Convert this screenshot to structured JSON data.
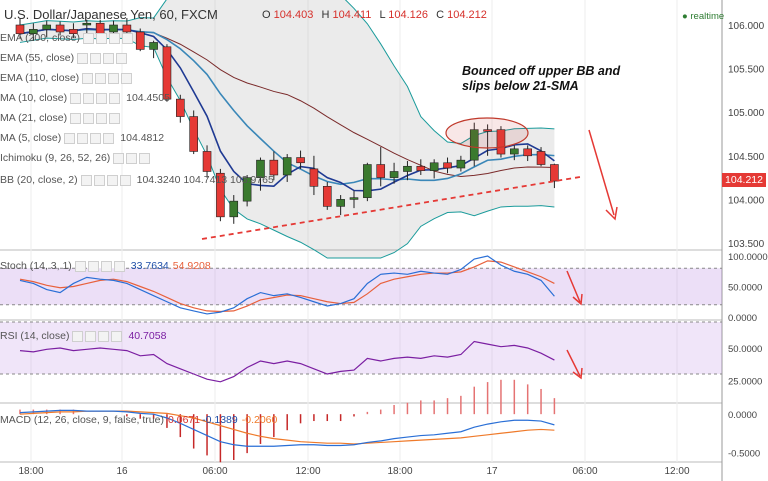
{
  "title": "U.S. Dollar/Japanese Yen, 60, FXCM",
  "ohlc": {
    "o_label": "O",
    "o": "104.403",
    "h_label": "H",
    "h": "104.411",
    "l_label": "L",
    "l": "104.126",
    "c_label": "C",
    "c": "104.212"
  },
  "realtime": "realtime",
  "annotation": "Bounced off upper BB and slips below 21-SMA",
  "annotation_lines": [
    "Bounced off upper BB and",
    "slips below 21-SMA"
  ],
  "current_price": "104.212",
  "indicators": [
    {
      "label": "EMA (200, close)",
      "value": ""
    },
    {
      "label": "EMA (55, close)",
      "value": ""
    },
    {
      "label": "EMA (110, close)",
      "value": ""
    },
    {
      "label": "MA (10, close)",
      "value": "104.4505"
    },
    {
      "label": "MA (21, close)",
      "value": ""
    },
    {
      "label": "MA (5, close)",
      "value": "104.4812"
    },
    {
      "label": "Ichimoku (9, 26, 52, 26)",
      "value": ""
    },
    {
      "label": "BB (20, close, 2)",
      "value": "104.3240 104.7413 103.9765"
    }
  ],
  "stoch": {
    "label": "Stoch (14, 3, 1)",
    "k": "33.7634",
    "d": "54.9208"
  },
  "rsi": {
    "label": "RSI (14, close)",
    "value": "40.7058"
  },
  "macd": {
    "label": "MACD (12, 26, close, 9, false, true)",
    "hist": "0.0671",
    "macd": "-0.1389",
    "signal": "-0.2060"
  },
  "colors": {
    "bull": "#3a7a2e",
    "bear": "#e53935",
    "ma5": "#1f3a93",
    "ma10": "#3a87b8",
    "ma21": "#7a2a2a",
    "bb": "#1a9b9b",
    "stoch_d": "#e8613c",
    "rsi": "#7b1fa2",
    "macd_sig": "#ef7a2a"
  },
  "chart_data": [
    {
      "type": "candlestick",
      "title": "U.S. Dollar/Japanese Yen, 60, FXCM",
      "ylim": [
        103.45,
        106.15
      ],
      "y_ticks": [
        106.0,
        105.5,
        105.0,
        104.5,
        104.0,
        103.5
      ],
      "x_ticks": [
        "18:00",
        "16",
        "06:00",
        "12:00",
        "18:00",
        "17",
        "06:00",
        "12:00"
      ],
      "candles": [
        {
          "o": 106.0,
          "h": 106.08,
          "l": 105.85,
          "c": 105.9
        },
        {
          "o": 105.9,
          "h": 106.02,
          "l": 105.82,
          "c": 105.95
        },
        {
          "o": 105.95,
          "h": 106.05,
          "l": 105.86,
          "c": 106.0
        },
        {
          "o": 106.0,
          "h": 106.04,
          "l": 105.88,
          "c": 105.92
        },
        {
          "o": 105.95,
          "h": 106.02,
          "l": 105.85,
          "c": 105.9
        },
        {
          "o": 106.0,
          "h": 106.06,
          "l": 105.88,
          "c": 106.02
        },
        {
          "o": 106.02,
          "h": 106.06,
          "l": 105.85,
          "c": 105.9
        },
        {
          "o": 105.92,
          "h": 106.05,
          "l": 105.88,
          "c": 106.0
        },
        {
          "o": 106.0,
          "h": 106.08,
          "l": 105.86,
          "c": 105.92
        },
        {
          "o": 105.92,
          "h": 105.96,
          "l": 105.7,
          "c": 105.72
        },
        {
          "o": 105.72,
          "h": 105.82,
          "l": 105.62,
          "c": 105.8
        },
        {
          "o": 105.75,
          "h": 105.78,
          "l": 105.12,
          "c": 105.15
        },
        {
          "o": 105.15,
          "h": 105.2,
          "l": 104.88,
          "c": 104.95
        },
        {
          "o": 104.95,
          "h": 105.02,
          "l": 104.52,
          "c": 104.55
        },
        {
          "o": 104.55,
          "h": 104.62,
          "l": 104.25,
          "c": 104.32
        },
        {
          "o": 104.3,
          "h": 104.35,
          "l": 103.75,
          "c": 103.8
        },
        {
          "o": 103.8,
          "h": 104.05,
          "l": 103.72,
          "c": 103.98
        },
        {
          "o": 103.98,
          "h": 104.28,
          "l": 103.92,
          "c": 104.25
        },
        {
          "o": 104.25,
          "h": 104.48,
          "l": 104.1,
          "c": 104.45
        },
        {
          "o": 104.45,
          "h": 104.55,
          "l": 104.22,
          "c": 104.28
        },
        {
          "o": 104.28,
          "h": 104.52,
          "l": 104.2,
          "c": 104.48
        },
        {
          "o": 104.48,
          "h": 104.56,
          "l": 104.35,
          "c": 104.42
        },
        {
          "o": 104.35,
          "h": 104.5,
          "l": 104.05,
          "c": 104.15
        },
        {
          "o": 104.15,
          "h": 104.2,
          "l": 103.88,
          "c": 103.92
        },
        {
          "o": 103.92,
          "h": 104.05,
          "l": 103.82,
          "c": 104.0
        },
        {
          "o": 104.0,
          "h": 104.1,
          "l": 103.9,
          "c": 104.02
        },
        {
          "o": 104.02,
          "h": 104.42,
          "l": 103.98,
          "c": 104.4
        },
        {
          "o": 104.4,
          "h": 104.6,
          "l": 104.15,
          "c": 104.25
        },
        {
          "o": 104.25,
          "h": 104.42,
          "l": 104.18,
          "c": 104.32
        },
        {
          "o": 104.32,
          "h": 104.44,
          "l": 104.22,
          "c": 104.38
        },
        {
          "o": 104.38,
          "h": 104.46,
          "l": 104.28,
          "c": 104.33
        },
        {
          "o": 104.33,
          "h": 104.46,
          "l": 104.24,
          "c": 104.42
        },
        {
          "o": 104.42,
          "h": 104.48,
          "l": 104.3,
          "c": 104.36
        },
        {
          "o": 104.36,
          "h": 104.5,
          "l": 104.32,
          "c": 104.45
        },
        {
          "o": 104.45,
          "h": 104.88,
          "l": 104.38,
          "c": 104.8
        },
        {
          "o": 104.8,
          "h": 104.86,
          "l": 104.5,
          "c": 104.78
        },
        {
          "o": 104.8,
          "h": 104.84,
          "l": 104.48,
          "c": 104.52
        },
        {
          "o": 104.52,
          "h": 104.62,
          "l": 104.45,
          "c": 104.58
        },
        {
          "o": 104.58,
          "h": 104.62,
          "l": 104.44,
          "c": 104.5
        },
        {
          "o": 104.55,
          "h": 104.6,
          "l": 104.38,
          "c": 104.4
        },
        {
          "o": 104.4,
          "h": 104.41,
          "l": 104.13,
          "c": 104.21
        }
      ]
    },
    {
      "type": "line",
      "name_label": "Stoch (14, 3, 1)",
      "ylim": [
        0,
        100
      ],
      "y_ticks": [
        100.0,
        50.0,
        0.0
      ],
      "k": [
        60,
        55,
        45,
        40,
        55,
        65,
        62,
        60,
        55,
        45,
        35,
        25,
        15,
        10,
        5,
        8,
        15,
        30,
        40,
        35,
        38,
        32,
        25,
        18,
        22,
        30,
        55,
        70,
        72,
        70,
        75,
        72,
        70,
        78,
        95,
        100,
        85,
        75,
        70,
        60,
        34
      ],
      "d": [
        62,
        58,
        52,
        48,
        50,
        55,
        60,
        62,
        58,
        50,
        42,
        32,
        22,
        15,
        10,
        9,
        10,
        18,
        28,
        32,
        36,
        35,
        30,
        25,
        22,
        24,
        38,
        55,
        62,
        66,
        70,
        72,
        72,
        74,
        82,
        92,
        90,
        82,
        74,
        66,
        55
      ]
    },
    {
      "type": "line",
      "name_label": "RSI (14, close)",
      "ylim": [
        10,
        70
      ],
      "y_ticks": [
        50.0,
        25.0
      ],
      "values": [
        48,
        47,
        49,
        50,
        48,
        49,
        50,
        49,
        48,
        44,
        45,
        38,
        34,
        30,
        26,
        24,
        28,
        35,
        40,
        38,
        40,
        38,
        34,
        30,
        32,
        33,
        42,
        40,
        42,
        43,
        42,
        44,
        43,
        45,
        55,
        53,
        51,
        52,
        50,
        46,
        40.7
      ]
    },
    {
      "type": "line",
      "name_label": "MACD (12, 26, close, 9, false, true)",
      "ylim": [
        -0.6,
        0.12
      ],
      "y_ticks": [
        0.0,
        -0.5
      ],
      "macd": [
        0.02,
        0.03,
        0.04,
        0.05,
        0.05,
        0.04,
        0.04,
        0.04,
        0.03,
        0.01,
        0.0,
        -0.05,
        -0.12,
        -0.2,
        -0.28,
        -0.36,
        -0.4,
        -0.42,
        -0.42,
        -0.42,
        -0.41,
        -0.4,
        -0.4,
        -0.41,
        -0.41,
        -0.4,
        -0.37,
        -0.35,
        -0.32,
        -0.3,
        -0.28,
        -0.27,
        -0.25,
        -0.23,
        -0.17,
        -0.13,
        -0.1,
        -0.08,
        -0.08,
        -0.09,
        -0.14
      ],
      "signal": [
        0.0,
        0.01,
        0.02,
        0.03,
        0.03,
        0.04,
        0.04,
        0.04,
        0.04,
        0.03,
        0.02,
        0.01,
        -0.02,
        -0.05,
        -0.1,
        -0.15,
        -0.2,
        -0.25,
        -0.29,
        -0.32,
        -0.34,
        -0.36,
        -0.37,
        -0.38,
        -0.38,
        -0.39,
        -0.38,
        -0.37,
        -0.36,
        -0.35,
        -0.34,
        -0.33,
        -0.32,
        -0.31,
        -0.29,
        -0.27,
        -0.25,
        -0.23,
        -0.21,
        -0.2,
        -0.21
      ]
    }
  ]
}
